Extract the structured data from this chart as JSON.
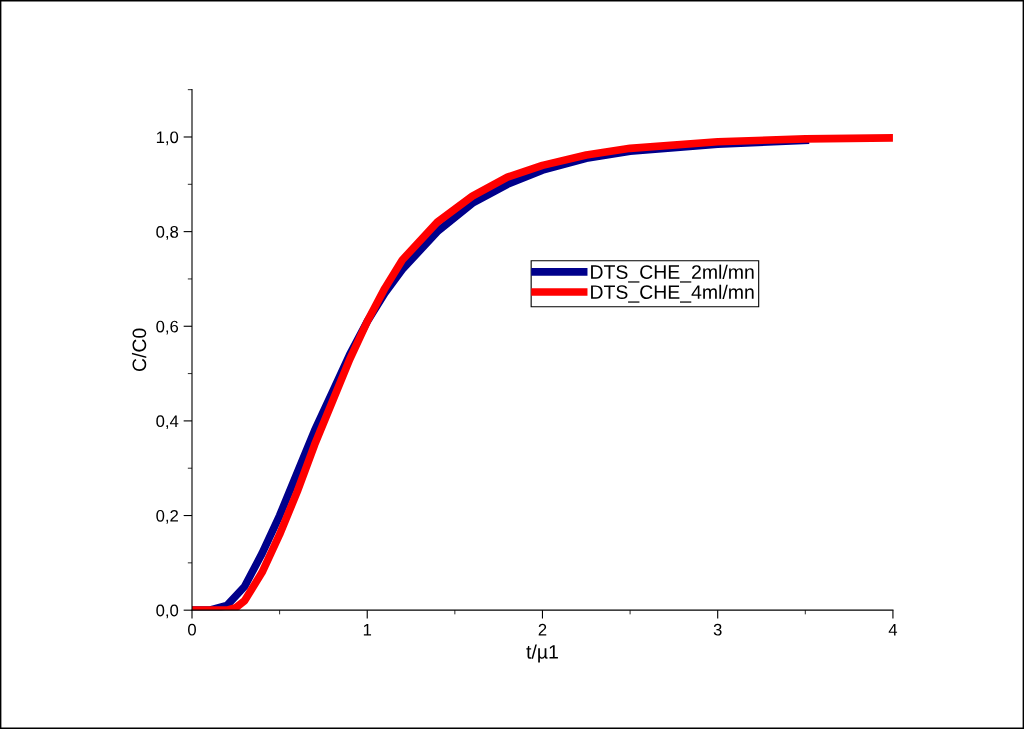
{
  "chart_data": {
    "type": "line",
    "xlabel": "t/µ1",
    "ylabel": "C/C0",
    "xlim": [
      0,
      4
    ],
    "xticks": [
      0,
      1,
      2,
      3,
      4
    ],
    "ylim": [
      0,
      1.1
    ],
    "yticks": [
      {
        "value": 0,
        "label": "0,0"
      },
      {
        "value": 0.2,
        "label": "0,2"
      },
      {
        "value": 0.4,
        "label": "0,4"
      },
      {
        "value": 0.6,
        "label": "0,6"
      },
      {
        "value": 0.8,
        "label": "0,8"
      },
      {
        "value": 1.0,
        "label": "1,0"
      }
    ],
    "grid": false,
    "legend": "right",
    "marker": "none",
    "line_style": "solid",
    "series": [
      {
        "name": "DTS_CHE_2ml/mn",
        "color": "#00008b",
        "x": [
          0,
          0.1,
          0.2,
          0.3,
          0.4,
          0.5,
          0.6,
          0.7,
          0.8,
          0.9,
          1.0,
          1.1,
          1.2,
          1.4,
          1.6,
          1.8,
          2.0,
          2.25,
          2.5,
          3.0,
          3.5
        ],
        "values": [
          0,
          0,
          0.01,
          0.05,
          0.12,
          0.2,
          0.29,
          0.38,
          0.46,
          0.54,
          0.61,
          0.67,
          0.72,
          0.8,
          0.86,
          0.9,
          0.93,
          0.955,
          0.97,
          0.985,
          0.993
        ]
      },
      {
        "name": "DTS_CHE_4ml/mn",
        "color": "#ff0000",
        "x": [
          0,
          0.2,
          0.25,
          0.3,
          0.4,
          0.5,
          0.6,
          0.7,
          0.8,
          0.9,
          1.0,
          1.1,
          1.2,
          1.4,
          1.6,
          1.8,
          2.0,
          2.25,
          2.5,
          3.0,
          3.5,
          4.0
        ],
        "values": [
          0,
          0,
          0.005,
          0.02,
          0.08,
          0.16,
          0.25,
          0.35,
          0.44,
          0.53,
          0.61,
          0.68,
          0.74,
          0.82,
          0.875,
          0.915,
          0.94,
          0.962,
          0.976,
          0.99,
          0.996,
          0.998
        ]
      }
    ]
  }
}
